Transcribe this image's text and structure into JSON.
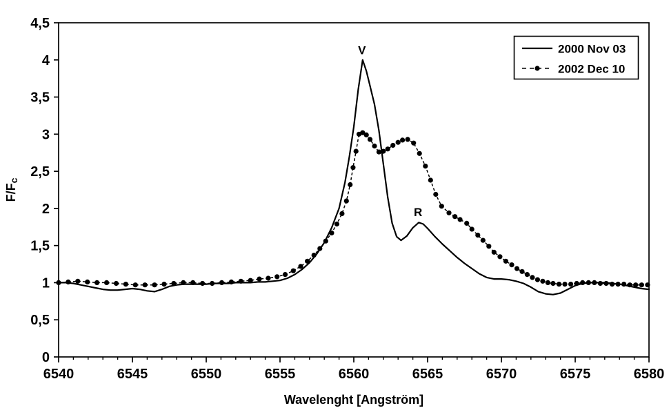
{
  "page": {
    "background": "#ffffff",
    "ink": "#000000"
  },
  "chart_data": {
    "type": "line",
    "title": "",
    "grid": false,
    "x_axis": {
      "label": "Wavelenght [Angström]",
      "range": [
        6540,
        6580
      ],
      "minor_step": 1,
      "ticks": [
        {
          "v": 6540,
          "label": "6540"
        },
        {
          "v": 6545,
          "label": "6545"
        },
        {
          "v": 6550,
          "label": "6550"
        },
        {
          "v": 6555,
          "label": "6555"
        },
        {
          "v": 6560,
          "label": "6560"
        },
        {
          "v": 6565,
          "label": "6565"
        },
        {
          "v": 6570,
          "label": "6570"
        },
        {
          "v": 6575,
          "label": "6575"
        },
        {
          "v": 6580,
          "label": "6580"
        }
      ]
    },
    "y_axis": {
      "label": "F/Fc",
      "label_main": "F/F",
      "label_sub": "c",
      "range": [
        0,
        4.5
      ],
      "ticks": [
        {
          "v": 0,
          "label": "0"
        },
        {
          "v": 0.5,
          "label": "0,5"
        },
        {
          "v": 1,
          "label": "1"
        },
        {
          "v": 1.5,
          "label": "1,5"
        },
        {
          "v": 2,
          "label": "2"
        },
        {
          "v": 2.5,
          "label": "2,5"
        },
        {
          "v": 3,
          "label": "3"
        },
        {
          "v": 3.5,
          "label": "3,5"
        },
        {
          "v": 4,
          "label": "4"
        },
        {
          "v": 4.5,
          "label": "4,5"
        }
      ]
    },
    "legend": {
      "position": "top-right",
      "entries": [
        {
          "label": "2000 Nov 03",
          "style": "solid"
        },
        {
          "label": "2002 Dec 10",
          "style": "dash-dot-marker"
        }
      ]
    },
    "annotations": [
      {
        "text": "V",
        "x": 6560.55,
        "y": 4.01
      },
      {
        "text": "R",
        "x": 6564.35,
        "y": 1.83
      }
    ],
    "series": [
      {
        "name": "2000 Nov 03",
        "style": "solid",
        "color": "#000000",
        "points": [
          [
            6540.0,
            1.0
          ],
          [
            6540.5,
            1.0
          ],
          [
            6541.0,
            0.99
          ],
          [
            6541.5,
            0.97
          ],
          [
            6542.0,
            0.95
          ],
          [
            6542.5,
            0.93
          ],
          [
            6543.0,
            0.91
          ],
          [
            6543.5,
            0.9
          ],
          [
            6544.0,
            0.9
          ],
          [
            6544.5,
            0.91
          ],
          [
            6545.0,
            0.92
          ],
          [
            6545.5,
            0.91
          ],
          [
            6546.0,
            0.89
          ],
          [
            6546.5,
            0.88
          ],
          [
            6547.0,
            0.91
          ],
          [
            6547.5,
            0.95
          ],
          [
            6548.0,
            0.97
          ],
          [
            6548.5,
            0.98
          ],
          [
            6549.0,
            0.98
          ],
          [
            6549.5,
            0.98
          ],
          [
            6550.0,
            0.98
          ],
          [
            6550.5,
            0.99
          ],
          [
            6551.0,
            0.99
          ],
          [
            6551.5,
            0.99
          ],
          [
            6552.0,
            1.0
          ],
          [
            6552.5,
            1.0
          ],
          [
            6553.0,
            1.0
          ],
          [
            6553.5,
            1.01
          ],
          [
            6554.0,
            1.01
          ],
          [
            6554.5,
            1.02
          ],
          [
            6555.0,
            1.03
          ],
          [
            6555.5,
            1.06
          ],
          [
            6556.0,
            1.11
          ],
          [
            6556.5,
            1.18
          ],
          [
            6557.0,
            1.27
          ],
          [
            6557.5,
            1.39
          ],
          [
            6558.0,
            1.54
          ],
          [
            6558.5,
            1.74
          ],
          [
            6559.0,
            2.0
          ],
          [
            6559.4,
            2.35
          ],
          [
            6559.7,
            2.7
          ],
          [
            6560.0,
            3.1
          ],
          [
            6560.3,
            3.6
          ],
          [
            6560.6,
            4.0
          ],
          [
            6560.85,
            3.85
          ],
          [
            6561.1,
            3.65
          ],
          [
            6561.4,
            3.4
          ],
          [
            6561.7,
            3.05
          ],
          [
            6562.0,
            2.6
          ],
          [
            6562.3,
            2.15
          ],
          [
            6562.6,
            1.8
          ],
          [
            6562.9,
            1.62
          ],
          [
            6563.2,
            1.57
          ],
          [
            6563.6,
            1.63
          ],
          [
            6564.0,
            1.74
          ],
          [
            6564.4,
            1.81
          ],
          [
            6564.7,
            1.79
          ],
          [
            6565.0,
            1.73
          ],
          [
            6565.5,
            1.62
          ],
          [
            6566.0,
            1.52
          ],
          [
            6566.5,
            1.43
          ],
          [
            6567.0,
            1.34
          ],
          [
            6567.5,
            1.26
          ],
          [
            6568.0,
            1.19
          ],
          [
            6568.5,
            1.12
          ],
          [
            6569.0,
            1.07
          ],
          [
            6569.5,
            1.05
          ],
          [
            6570.0,
            1.05
          ],
          [
            6570.5,
            1.04
          ],
          [
            6571.0,
            1.02
          ],
          [
            6571.5,
            0.99
          ],
          [
            6572.0,
            0.94
          ],
          [
            6572.5,
            0.88
          ],
          [
            6573.0,
            0.85
          ],
          [
            6573.5,
            0.84
          ],
          [
            6574.0,
            0.86
          ],
          [
            6574.5,
            0.91
          ],
          [
            6575.0,
            0.96
          ],
          [
            6575.5,
            0.99
          ],
          [
            6576.0,
            1.0
          ],
          [
            6576.5,
            1.0
          ],
          [
            6577.0,
            1.0
          ],
          [
            6577.5,
            0.99
          ],
          [
            6578.0,
            0.98
          ],
          [
            6578.5,
            0.96
          ],
          [
            6579.0,
            0.94
          ],
          [
            6579.5,
            0.92
          ],
          [
            6580.0,
            0.91
          ]
        ]
      },
      {
        "name": "2002 Dec 10",
        "style": "dash-dot-marker",
        "marker": "filled-circle",
        "color": "#000000",
        "points": [
          [
            6540.0,
            1.0
          ],
          [
            6540.65,
            1.01
          ],
          [
            6541.3,
            1.02
          ],
          [
            6541.95,
            1.01
          ],
          [
            6542.6,
            1.0
          ],
          [
            6543.25,
            1.0
          ],
          [
            6543.9,
            0.99
          ],
          [
            6544.55,
            0.98
          ],
          [
            6545.2,
            0.97
          ],
          [
            6545.85,
            0.97
          ],
          [
            6546.5,
            0.97
          ],
          [
            6547.15,
            0.98
          ],
          [
            6547.8,
            0.99
          ],
          [
            6548.45,
            1.0
          ],
          [
            6549.1,
            1.0
          ],
          [
            6549.75,
            0.99
          ],
          [
            6550.4,
            0.99
          ],
          [
            6551.05,
            1.0
          ],
          [
            6551.7,
            1.01
          ],
          [
            6552.35,
            1.02
          ],
          [
            6553.0,
            1.03
          ],
          [
            6553.6,
            1.05
          ],
          [
            6554.2,
            1.06
          ],
          [
            6554.8,
            1.08
          ],
          [
            6555.35,
            1.11
          ],
          [
            6555.9,
            1.16
          ],
          [
            6556.4,
            1.22
          ],
          [
            6556.85,
            1.29
          ],
          [
            6557.3,
            1.37
          ],
          [
            6557.7,
            1.46
          ],
          [
            6558.1,
            1.56
          ],
          [
            6558.5,
            1.67
          ],
          [
            6558.85,
            1.79
          ],
          [
            6559.2,
            1.93
          ],
          [
            6559.5,
            2.1
          ],
          [
            6559.75,
            2.32
          ],
          [
            6559.95,
            2.55
          ],
          [
            6560.15,
            2.77
          ],
          [
            6560.35,
            3.0
          ],
          [
            6560.6,
            3.02
          ],
          [
            6560.85,
            2.99
          ],
          [
            6561.1,
            2.93
          ],
          [
            6561.4,
            2.84
          ],
          [
            6561.7,
            2.76
          ],
          [
            6562.0,
            2.77
          ],
          [
            6562.3,
            2.8
          ],
          [
            6562.65,
            2.85
          ],
          [
            6563.0,
            2.89
          ],
          [
            6563.3,
            2.92
          ],
          [
            6563.65,
            2.93
          ],
          [
            6564.05,
            2.88
          ],
          [
            6564.45,
            2.74
          ],
          [
            6564.85,
            2.57
          ],
          [
            6565.2,
            2.38
          ],
          [
            6565.55,
            2.19
          ],
          [
            6565.95,
            2.03
          ],
          [
            6566.45,
            1.94
          ],
          [
            6566.85,
            1.89
          ],
          [
            6567.2,
            1.85
          ],
          [
            6567.65,
            1.8
          ],
          [
            6568.0,
            1.72
          ],
          [
            6568.4,
            1.64
          ],
          [
            6568.75,
            1.57
          ],
          [
            6569.15,
            1.49
          ],
          [
            6569.5,
            1.41
          ],
          [
            6569.9,
            1.35
          ],
          [
            6570.3,
            1.29
          ],
          [
            6570.7,
            1.24
          ],
          [
            6571.05,
            1.19
          ],
          [
            6571.4,
            1.15
          ],
          [
            6571.75,
            1.11
          ],
          [
            6572.1,
            1.07
          ],
          [
            6572.45,
            1.04
          ],
          [
            6572.8,
            1.02
          ],
          [
            6573.15,
            1.0
          ],
          [
            6573.5,
            0.99
          ],
          [
            6573.9,
            0.98
          ],
          [
            6574.3,
            0.98
          ],
          [
            6574.7,
            0.98
          ],
          [
            6575.1,
            0.99
          ],
          [
            6575.5,
            1.0
          ],
          [
            6575.9,
            1.0
          ],
          [
            6576.3,
            1.0
          ],
          [
            6576.7,
            0.99
          ],
          [
            6577.1,
            0.99
          ],
          [
            6577.5,
            0.98
          ],
          [
            6577.9,
            0.98
          ],
          [
            6578.3,
            0.98
          ],
          [
            6578.7,
            0.97
          ],
          [
            6579.1,
            0.97
          ],
          [
            6579.5,
            0.97
          ],
          [
            6579.9,
            0.97
          ]
        ]
      }
    ]
  }
}
